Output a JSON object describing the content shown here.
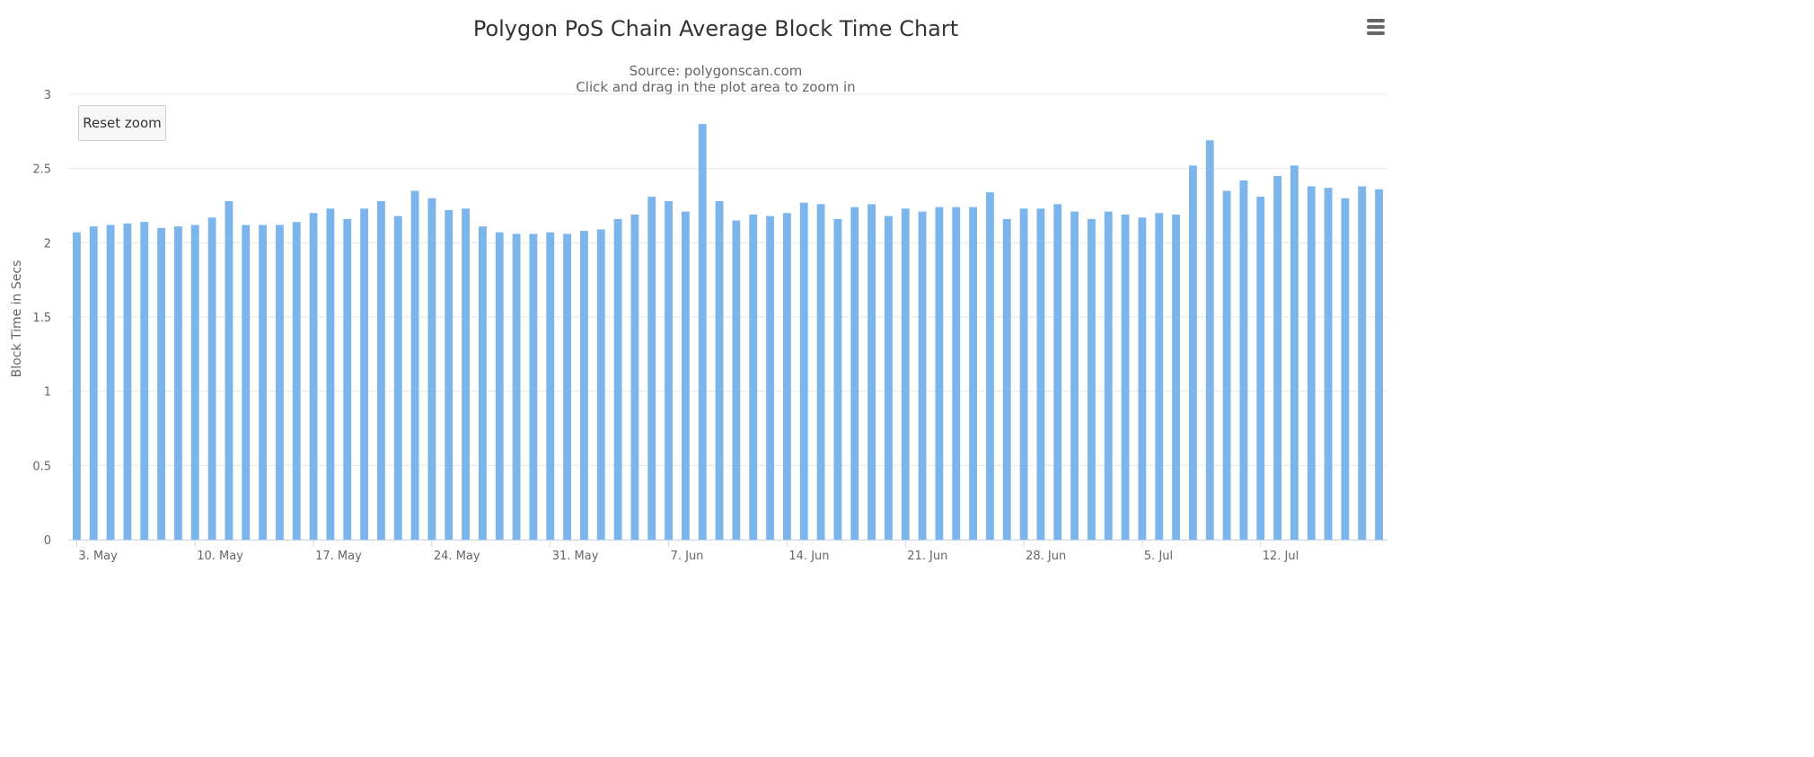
{
  "header": {
    "title": "Polygon PoS Chain Average Block Time Chart",
    "source": "Source: polygonscan.com",
    "hint": "Click and drag in the plot area to zoom in"
  },
  "controls": {
    "reset_zoom_label": "Reset zoom",
    "menu_icon": "hamburger-menu-icon"
  },
  "colors": {
    "bar": "#7cb5ec",
    "grid": "#e6e6e6",
    "axis_text": "#666666",
    "title": "#333333"
  },
  "chart_data": {
    "type": "bar",
    "title": "Polygon PoS Chain Average Block Time Chart",
    "subtitle": "Source: polygonscan.com",
    "xlabel": "",
    "ylabel": "Block Time in Secs",
    "ylim": [
      0,
      3
    ],
    "yticks": [
      "0",
      "0.5",
      "1",
      "1.5",
      "2",
      "2.5",
      "3"
    ],
    "grid": true,
    "legend": "none",
    "start_date": "3 May",
    "xticks": [
      "3. May",
      "10. May",
      "17. May",
      "24. May",
      "31. May",
      "7. Jun",
      "14. Jun",
      "21. Jun",
      "28. Jun",
      "5. Jul",
      "12. Jul"
    ],
    "values": [
      2.07,
      2.11,
      2.12,
      2.13,
      2.14,
      2.1,
      2.11,
      2.12,
      2.17,
      2.28,
      2.12,
      2.12,
      2.12,
      2.14,
      2.2,
      2.23,
      2.16,
      2.23,
      2.28,
      2.18,
      2.35,
      2.3,
      2.22,
      2.23,
      2.11,
      2.07,
      2.06,
      2.06,
      2.07,
      2.06,
      2.08,
      2.09,
      2.16,
      2.19,
      2.31,
      2.28,
      2.21,
      2.8,
      2.28,
      2.15,
      2.19,
      2.18,
      2.2,
      2.27,
      2.26,
      2.16,
      2.24,
      2.26,
      2.18,
      2.23,
      2.21,
      2.24,
      2.24,
      2.24,
      2.34,
      2.16,
      2.23,
      2.23,
      2.26,
      2.21,
      2.16,
      2.21,
      2.19,
      2.17,
      2.2,
      2.19,
      2.52,
      2.69,
      2.35,
      2.42,
      2.31,
      2.45,
      2.52,
      2.38,
      2.37,
      2.3,
      2.38,
      2.36
    ]
  }
}
